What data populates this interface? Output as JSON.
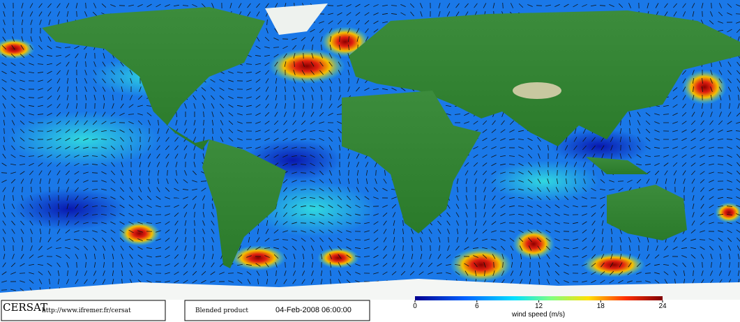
{
  "footer": {
    "logo": "CERSAT",
    "url": "http://www.ifremer.fr/cersat",
    "product": "Blended product",
    "date": "04-Feb-2008 06:00:00"
  },
  "colorbar": {
    "label": "wind speed (m/s)",
    "range": [
      0,
      24
    ],
    "ticks": [
      0,
      6,
      12,
      18,
      24
    ]
  }
}
